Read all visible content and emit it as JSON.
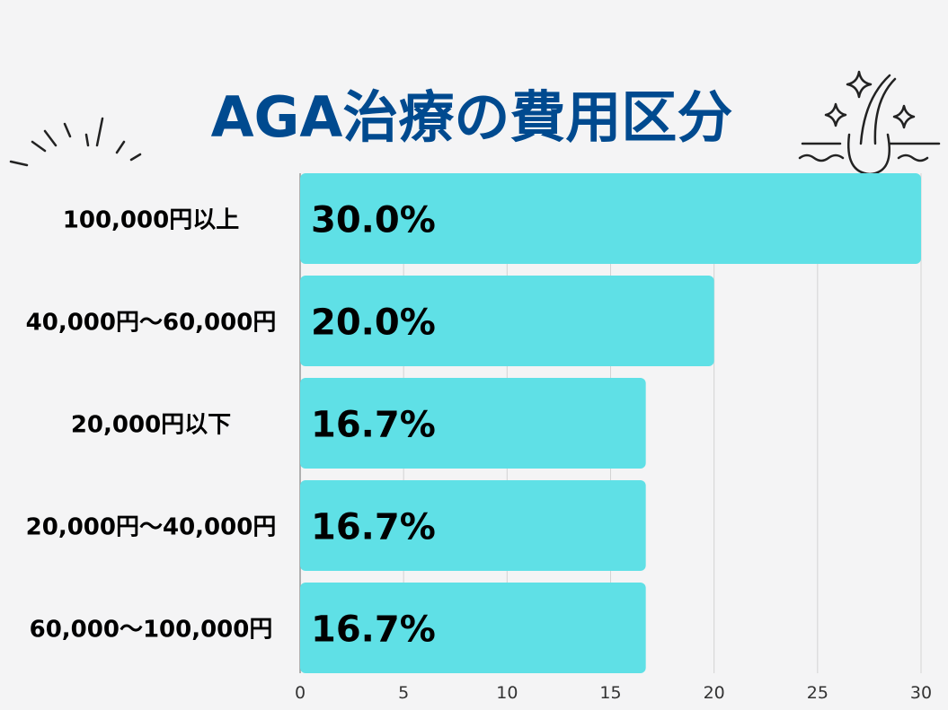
{
  "chart_data": {
    "type": "bar",
    "orientation": "horizontal",
    "title": "AGA治療の費用区分",
    "categories": [
      "100,000円以上",
      "40,000円〜60,000円",
      "20,000円以下",
      "20,000円〜40,000円",
      "60,000〜100,000円"
    ],
    "values": [
      30.0,
      20.0,
      16.7,
      16.7,
      16.7
    ],
    "data_labels": [
      "30.0%",
      "20.0%",
      "16.7%",
      "16.7%",
      "16.7%"
    ],
    "x_ticks": [
      "0",
      "5",
      "10",
      "15",
      "20",
      "25",
      "30"
    ],
    "xlim": [
      0,
      30
    ],
    "grid": "vertical",
    "legend": "none"
  },
  "colors": {
    "background": "#f4f4f5",
    "bar": "#5fe0e6",
    "title": "#004a8f",
    "text": "#000000",
    "grid": "#d3d3d3",
    "decoration": "#222222"
  },
  "icons": [
    "sparkle-lines-icon",
    "hair-follicle-icon"
  ]
}
